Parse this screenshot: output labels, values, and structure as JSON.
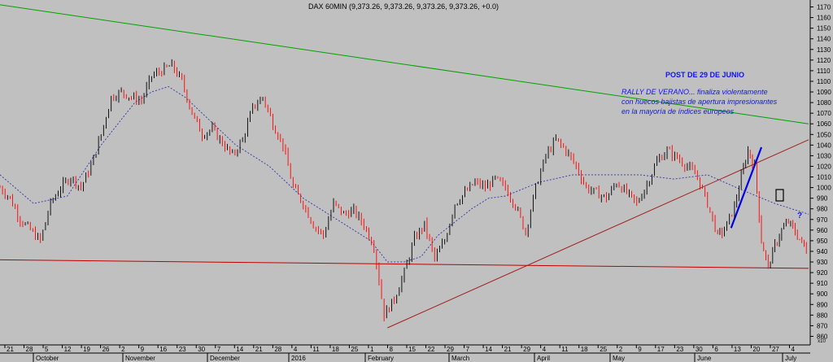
{
  "chart_data": {
    "type": "candlestick-line",
    "title": "DAX 60MIN (9,373.26, 9,373.26, 9,373.26, 9,373.26, +0.0)",
    "annotations": {
      "post_title": "POST DE 29 DE JUNIO",
      "note_lines": [
        "RALLY DE VERANO... finaliza violentamente",
        "con huecos bajistas de apertura impresionantes",
        "en la mayoría de índices europeos"
      ],
      "question": "?"
    },
    "y_axis": {
      "ticks": [
        "1170",
        "1160",
        "1150",
        "1140",
        "1130",
        "1120",
        "1110",
        "1100",
        "1090",
        "1080",
        "1070",
        "1060",
        "1050",
        "1040",
        "1030",
        "1020",
        "1010",
        "1000",
        "990",
        "980",
        "970",
        "960",
        "950",
        "940",
        "930",
        "920",
        "910",
        "900",
        "890",
        "880",
        "870",
        "860"
      ],
      "ylim": [
        850,
        1175
      ],
      "unit_label": "x10"
    },
    "x_axis": {
      "day_ticks": [
        "21",
        "28",
        "5",
        "12",
        "19",
        "26",
        "2",
        "9",
        "16",
        "23",
        "30",
        "7",
        "14",
        "21",
        "28",
        "4",
        "11",
        "18",
        "25",
        "1",
        "8",
        "15",
        "22",
        "29",
        "7",
        "14",
        "21",
        "29",
        "4",
        "11",
        "18",
        "25",
        "2",
        "9",
        "17",
        "23",
        "30",
        "6",
        "13",
        "20",
        "27",
        "4"
      ],
      "months": [
        "October",
        "November",
        "December",
        "2016",
        "February",
        "March",
        "April",
        "May",
        "June",
        "July"
      ]
    },
    "series": {
      "price": [
        [
          0,
          1000
        ],
        [
          3,
          990
        ],
        [
          6,
          970
        ],
        [
          9,
          960
        ],
        [
          12,
          950
        ],
        [
          15,
          985
        ],
        [
          18,
          1000
        ],
        [
          21,
          1010
        ],
        [
          24,
          1000
        ],
        [
          27,
          1020
        ],
        [
          30,
          1050
        ],
        [
          33,
          1085
        ],
        [
          36,
          1090
        ],
        [
          39,
          1085
        ],
        [
          42,
          1082
        ],
        [
          45,
          1105
        ],
        [
          48,
          1110
        ],
        [
          51,
          1115
        ],
        [
          54,
          1100
        ],
        [
          57,
          1070
        ],
        [
          60,
          1050
        ],
        [
          63,
          1055
        ],
        [
          66,
          1042
        ],
        [
          69,
          1030
        ],
        [
          72,
          1045
        ],
        [
          75,
          1075
        ],
        [
          78,
          1085
        ],
        [
          81,
          1060
        ],
        [
          84,
          1040
        ],
        [
          87,
          1000
        ],
        [
          90,
          985
        ],
        [
          93,
          965
        ],
        [
          96,
          955
        ],
        [
          99,
          985
        ],
        [
          102,
          975
        ],
        [
          105,
          978
        ],
        [
          108,
          965
        ],
        [
          111,
          945
        ],
        [
          114,
          880
        ],
        [
          117,
          895
        ],
        [
          120,
          920
        ],
        [
          123,
          952
        ],
        [
          126,
          965
        ],
        [
          129,
          933
        ],
        [
          132,
          950
        ],
        [
          135,
          985
        ],
        [
          138,
          995
        ],
        [
          141,
          1005
        ],
        [
          144,
          1000
        ],
        [
          147,
          1008
        ],
        [
          150,
          1000
        ],
        [
          153,
          983
        ],
        [
          156,
          958
        ],
        [
          159,
          1000
        ],
        [
          162,
          1030
        ],
        [
          165,
          1045
        ],
        [
          168,
          1035
        ],
        [
          171,
          1020
        ],
        [
          174,
          1000
        ],
        [
          177,
          995
        ],
        [
          180,
          990
        ],
        [
          183,
          1005
        ],
        [
          186,
          995
        ],
        [
          189,
          985
        ],
        [
          192,
          1003
        ],
        [
          195,
          1025
        ],
        [
          198,
          1035
        ],
        [
          201,
          1028
        ],
        [
          204,
          1020
        ],
        [
          207,
          1010
        ],
        [
          210,
          985
        ],
        [
          213,
          955
        ],
        [
          215,
          960
        ],
        [
          218,
          982
        ],
        [
          220,
          1010
        ],
        [
          222,
          1035
        ],
        [
          224,
          1020
        ],
        [
          226,
          950
        ],
        [
          228,
          925
        ],
        [
          230,
          945
        ],
        [
          232,
          960
        ],
        [
          234,
          968
        ],
        [
          236,
          958
        ],
        [
          238,
          948
        ],
        [
          240,
          938
        ]
      ],
      "moving_average": [
        [
          0,
          1012
        ],
        [
          10,
          985
        ],
        [
          20,
          992
        ],
        [
          30,
          1040
        ],
        [
          40,
          1080
        ],
        [
          45,
          1090
        ],
        [
          50,
          1095
        ],
        [
          55,
          1085
        ],
        [
          60,
          1070
        ],
        [
          70,
          1040
        ],
        [
          80,
          1020
        ],
        [
          90,
          990
        ],
        [
          100,
          970
        ],
        [
          110,
          950
        ],
        [
          115,
          930
        ],
        [
          120,
          930
        ],
        [
          125,
          935
        ],
        [
          130,
          955
        ],
        [
          140,
          980
        ],
        [
          145,
          990
        ],
        [
          150,
          992
        ],
        [
          160,
          1005
        ],
        [
          170,
          1012
        ],
        [
          180,
          1012
        ],
        [
          190,
          1012
        ],
        [
          200,
          1008
        ],
        [
          210,
          1012
        ],
        [
          220,
          998
        ],
        [
          230,
          985
        ],
        [
          240,
          975
        ]
      ],
      "trendlines": [
        {
          "name": "green-downtrend",
          "color": "#00a000",
          "from": [
            0,
            1172
          ],
          "to": [
            240,
            1060
          ]
        },
        {
          "name": "red-support",
          "color": "#c00000",
          "from": [
            0,
            932
          ],
          "to": [
            240,
            924
          ]
        },
        {
          "name": "brown-uptrend",
          "color": "#a02020",
          "from": [
            115,
            868
          ],
          "to": [
            240,
            1045
          ]
        },
        {
          "name": "blue-rally",
          "color": "#0000ee",
          "from": [
            217,
            962
          ],
          "to": [
            226,
            1038
          ]
        }
      ]
    },
    "colors": {
      "background": "#c0c0c0",
      "up": "#000000",
      "down": "#ff0000",
      "ma": "#3333aa",
      "annotation": "#1010ff"
    }
  }
}
